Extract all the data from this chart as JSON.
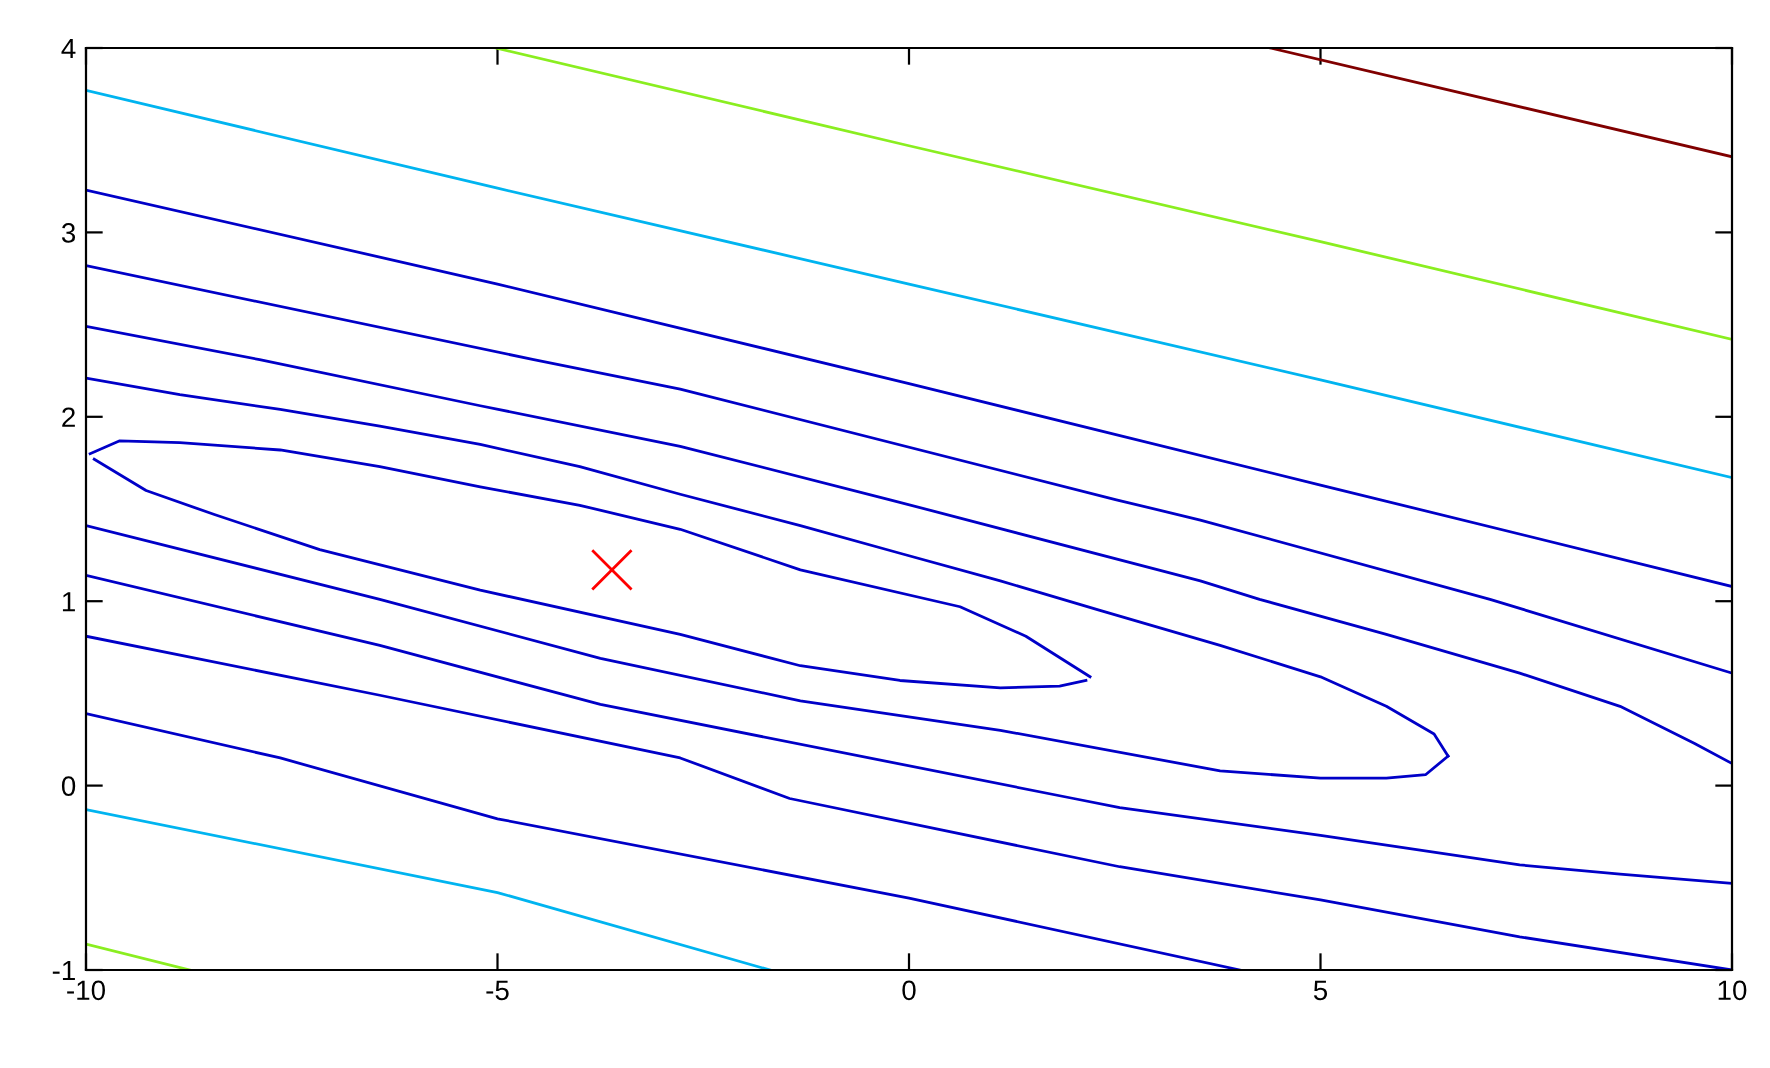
{
  "chart_data": {
    "type": "line",
    "xlim": [
      -10,
      10
    ],
    "ylim": [
      -1,
      4
    ],
    "xticks": [
      -10,
      -5,
      0,
      5,
      10
    ],
    "yticks": [
      -1,
      0,
      1,
      2,
      3,
      4
    ],
    "series": [
      {
        "color": "#0000c8",
        "x": [
          -9.95,
          -9.59,
          -8.86,
          -7.64,
          -6.43,
          -5.21,
          -4.0,
          -2.78,
          -1.32,
          0.62,
          1.42,
          2.2
        ],
        "values": [
          1.8,
          1.87,
          1.86,
          1.82,
          1.73,
          1.62,
          1.52,
          1.39,
          1.17,
          0.97,
          0.81,
          0.59
        ]
      },
      {
        "color": "#0000c8",
        "x": [
          -9.9,
          -9.27,
          -8.44,
          -7.16,
          -5.21,
          -2.78,
          -1.32,
          -0.11,
          1.11,
          1.83,
          2.15
        ],
        "values": [
          1.77,
          1.6,
          1.47,
          1.28,
          1.06,
          0.82,
          0.65,
          0.57,
          0.53,
          0.54,
          0.57
        ]
      },
      {
        "color": "#0000c8",
        "x": [
          -10,
          -8.86,
          -7.64,
          -6.43,
          -5.21,
          -4.0,
          -2.78,
          -1.32,
          -0.11,
          1.11,
          2.32,
          3.78,
          5.0,
          5.8,
          6.38,
          6.55
        ],
        "values": [
          2.21,
          2.12,
          2.04,
          1.95,
          1.85,
          1.73,
          1.58,
          1.41,
          1.26,
          1.11,
          0.95,
          0.76,
          0.59,
          0.43,
          0.28,
          0.16
        ]
      },
      {
        "color": "#0000c8",
        "x": [
          -10,
          -6.43,
          -3.75,
          -1.32,
          1.11,
          3.78,
          5.0,
          5.8,
          6.28,
          6.55
        ],
        "values": [
          1.41,
          1.01,
          0.69,
          0.46,
          0.3,
          0.08,
          0.04,
          0.04,
          0.06,
          0.16
        ]
      },
      {
        "color": "#0000c8",
        "x": [
          -10,
          -7.89,
          -5.21,
          -2.78,
          -0.23,
          3.54,
          4.26,
          5.8,
          7.42,
          8.64,
          9.54,
          10
        ],
        "values": [
          2.49,
          2.31,
          2.06,
          1.84,
          1.55,
          1.11,
          1.01,
          0.82,
          0.61,
          0.43,
          0.23,
          0.12
        ]
      },
      {
        "color": "#0000c8",
        "x": [
          -10,
          -6.43,
          -3.75,
          2.0,
          2.56,
          5.0,
          7.42,
          8.64,
          10
        ],
        "values": [
          1.14,
          0.76,
          0.44,
          -0.07,
          -0.12,
          -0.27,
          -0.43,
          -0.48,
          -0.53
        ]
      },
      {
        "color": "#0000c8",
        "x": [
          -10,
          -4.56,
          -2.78,
          2.52,
          3.54,
          7.06,
          10
        ],
        "values": [
          2.82,
          2.31,
          2.15,
          1.55,
          1.44,
          1.01,
          0.61
        ]
      },
      {
        "color": "#0000c8",
        "x": [
          -10,
          -6.43,
          -2.78,
          -1.45,
          2.56,
          5.0,
          7.42,
          10
        ],
        "values": [
          0.81,
          0.49,
          0.15,
          -0.07,
          -0.44,
          -0.62,
          -0.82,
          -1
        ]
      },
      {
        "color": "#0000c8",
        "x": [
          -10,
          -5,
          0,
          5,
          10
        ],
        "values": [
          3.23,
          2.72,
          2.18,
          1.63,
          1.08
        ]
      },
      {
        "color": "#0000c8",
        "x": [
          -10,
          -7.64,
          -5,
          0,
          4.02
        ],
        "values": [
          0.39,
          0.15,
          -0.18,
          -0.61,
          -1
        ]
      },
      {
        "color": "#00b4f0",
        "x": [
          -10,
          -5,
          0,
          5,
          10
        ],
        "values": [
          3.77,
          3.24,
          2.72,
          2.2,
          1.67
        ]
      },
      {
        "color": "#00b4f0",
        "x": [
          -10,
          -5,
          -1.69
        ],
        "values": [
          -0.13,
          -0.58,
          -1
        ]
      },
      {
        "color": "#8aee20",
        "x": [
          -5.02,
          0,
          5,
          10
        ],
        "values": [
          4,
          3.47,
          2.95,
          2.42
        ]
      },
      {
        "color": "#8aee20",
        "x": [
          -10,
          -8.74
        ],
        "values": [
          -0.86,
          -1
        ]
      },
      {
        "color": "#800000",
        "x": [
          4.39,
          10
        ],
        "values": [
          4,
          3.41
        ]
      },
      {
        "type": "scatter",
        "color": "#ff0000",
        "marker": "cross",
        "x": [
          -3.61
        ],
        "values": [
          1.17
        ]
      }
    ]
  }
}
